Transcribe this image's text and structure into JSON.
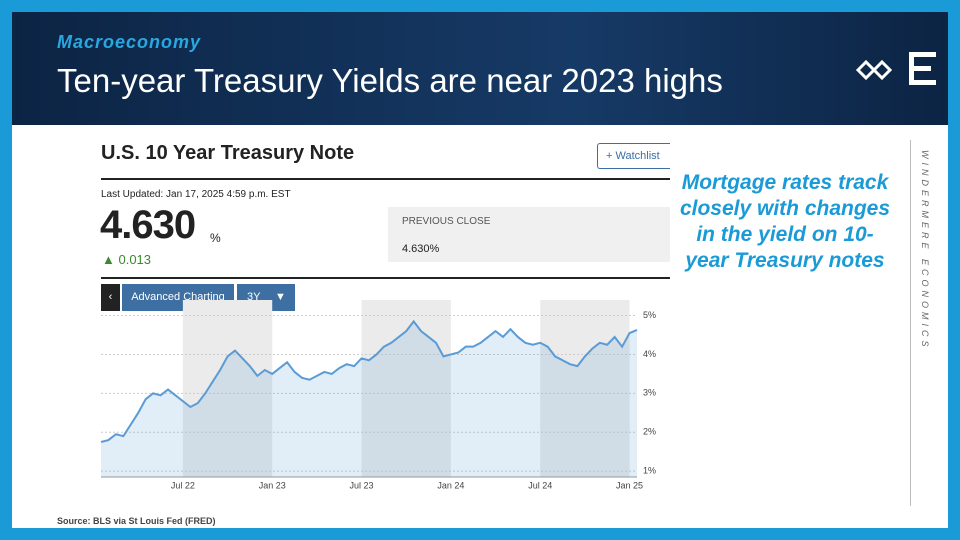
{
  "header": {
    "section": "Macroeconomy",
    "title": "Ten-year Treasury Yields are near 2023 highs"
  },
  "widget": {
    "name": "U.S. 10 Year Treasury Note",
    "watchlist": "Watchlist",
    "updated": "Last Updated: Jan 17, 2025 4:59 p.m. EST",
    "price": "4.630",
    "unit": "%",
    "change": "0.013",
    "previous_close_label": "PREVIOUS CLOSE",
    "previous_close": "4.630%",
    "advanced": "Advanced Charting",
    "range": "3Y"
  },
  "chart_data": {
    "type": "line",
    "color": "#5b9bd5",
    "categories": [
      null,
      null,
      null,
      null,
      null,
      null,
      null,
      null,
      null,
      null,
      null,
      "Jul 22",
      null,
      null,
      null,
      null,
      null,
      null,
      null,
      null,
      null,
      null,
      null,
      "Jan 23",
      null,
      null,
      null,
      null,
      null,
      null,
      null,
      null,
      null,
      null,
      null,
      "Jul 23",
      null,
      null,
      null,
      null,
      null,
      null,
      null,
      null,
      null,
      null,
      null,
      "Jan 24",
      null,
      null,
      null,
      null,
      null,
      null,
      null,
      null,
      null,
      null,
      null,
      "Jul 24",
      null,
      null,
      null,
      null,
      null,
      null,
      null,
      null,
      null,
      null,
      null,
      "Jan 25",
      null
    ],
    "values": [
      1.75,
      1.8,
      1.95,
      1.9,
      2.2,
      2.5,
      2.85,
      3.0,
      2.95,
      3.1,
      2.95,
      2.8,
      2.65,
      2.75,
      3.0,
      3.3,
      3.6,
      3.95,
      4.1,
      3.9,
      3.7,
      3.45,
      3.6,
      3.5,
      3.65,
      3.8,
      3.55,
      3.4,
      3.35,
      3.45,
      3.55,
      3.5,
      3.65,
      3.75,
      3.7,
      3.9,
      3.85,
      4.0,
      4.2,
      4.3,
      4.45,
      4.6,
      4.85,
      4.6,
      4.45,
      4.3,
      3.95,
      4.0,
      4.05,
      4.2,
      4.2,
      4.3,
      4.45,
      4.6,
      4.45,
      4.65,
      4.45,
      4.3,
      4.25,
      4.3,
      4.2,
      3.95,
      3.85,
      3.75,
      3.7,
      3.95,
      4.15,
      4.3,
      4.25,
      4.45,
      4.2,
      4.55,
      4.63
    ],
    "ylim": [
      0.85,
      5.4
    ],
    "yticks": [
      {
        "value": 1,
        "label": "1%"
      },
      {
        "value": 2,
        "label": "2%"
      },
      {
        "value": 3,
        "label": "3%"
      },
      {
        "value": 4,
        "label": "4%"
      },
      {
        "value": 5,
        "label": "5%"
      }
    ],
    "grid": true
  },
  "callout": "Mortgage rates track closely with changes in the yield on 10-year Treasury notes",
  "brand": "WINDERMERE ECONOMICS",
  "source": "Source: BLS via St Louis Fed (FRED)"
}
